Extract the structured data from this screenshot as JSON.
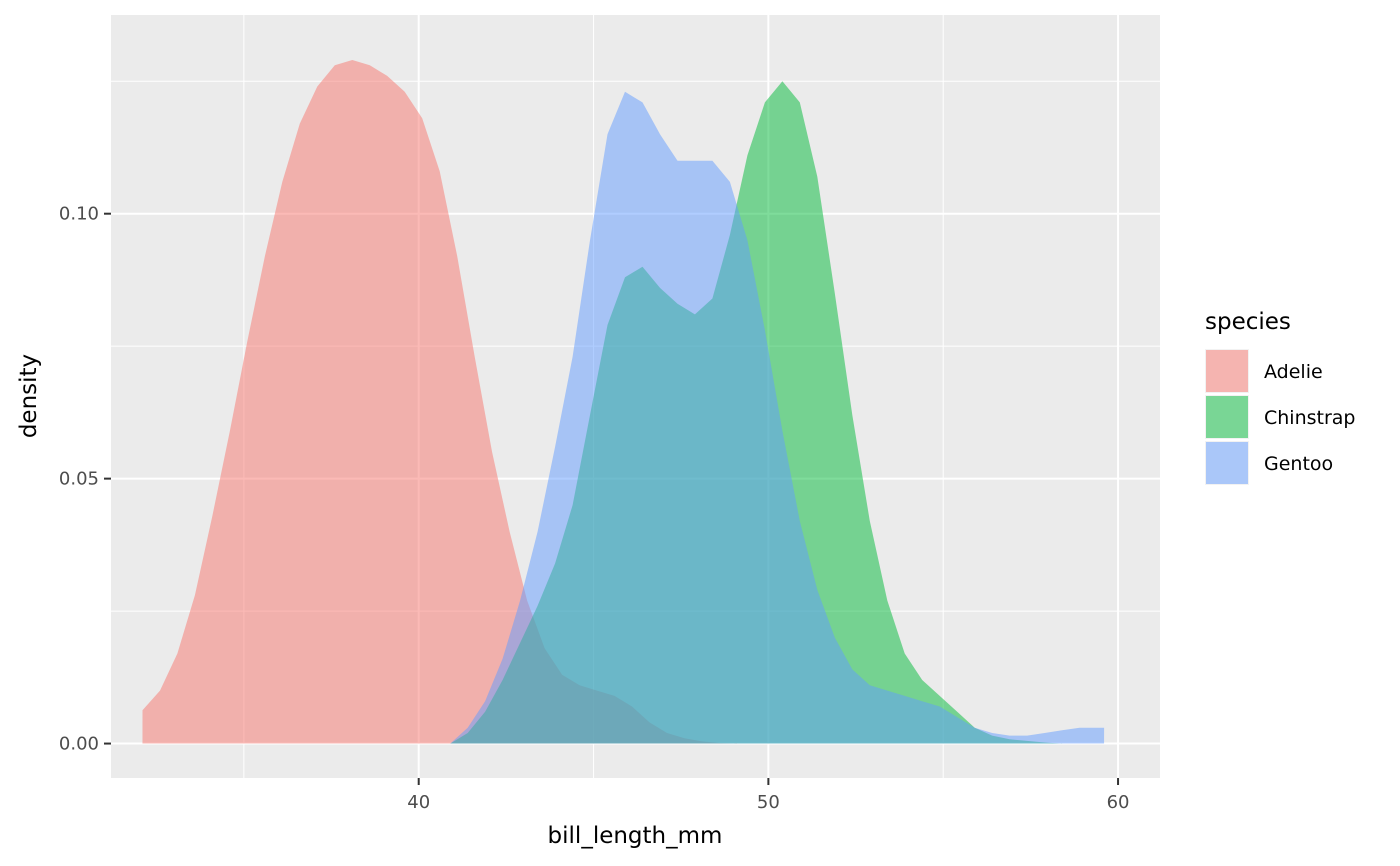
{
  "chart_data": {
    "type": "area",
    "title": "",
    "xlabel": "bill_length_mm",
    "ylabel": "density",
    "xlim": [
      31.2,
      61.2
    ],
    "ylim": [
      -0.0065,
      0.1375
    ],
    "x_ticks": [
      40,
      50,
      60
    ],
    "x_tick_labels": [
      "40",
      "50",
      "60"
    ],
    "y_ticks": [
      0.0,
      0.05,
      0.1
    ],
    "y_tick_labels": [
      "0.00",
      "0.05",
      "0.10"
    ],
    "grid": true,
    "legend": {
      "title": "species",
      "position": "right"
    },
    "fill_alpha": 0.5,
    "series": [
      {
        "name": "Adelie",
        "color": "#F8766D",
        "x": [
          32.1,
          32.6,
          33.1,
          33.6,
          34.1,
          34.6,
          35.1,
          35.6,
          36.1,
          36.6,
          37.1,
          37.6,
          38.1,
          38.6,
          39.1,
          39.6,
          40.1,
          40.6,
          41.1,
          41.6,
          42.1,
          42.6,
          43.1,
          43.6,
          44.1,
          44.6,
          45.1,
          45.6,
          46.1,
          46.6,
          47.1,
          47.6,
          48.1,
          48.6,
          49.1
        ],
        "y": [
          0.0063,
          0.01,
          0.017,
          0.028,
          0.043,
          0.059,
          0.076,
          0.092,
          0.106,
          0.117,
          0.124,
          0.128,
          0.129,
          0.128,
          0.126,
          0.123,
          0.118,
          0.108,
          0.092,
          0.073,
          0.055,
          0.04,
          0.027,
          0.018,
          0.013,
          0.011,
          0.01,
          0.009,
          0.007,
          0.004,
          0.002,
          0.001,
          0.0004,
          0.0001,
          0.0
        ]
      },
      {
        "name": "Chinstrap",
        "color": "#00BA38",
        "x": [
          40.9,
          41.4,
          41.9,
          42.4,
          42.9,
          43.4,
          43.9,
          44.4,
          44.9,
          45.4,
          45.9,
          46.4,
          46.9,
          47.4,
          47.9,
          48.4,
          48.9,
          49.4,
          49.9,
          50.4,
          50.9,
          51.4,
          51.9,
          52.4,
          52.9,
          53.4,
          53.9,
          54.4,
          54.9,
          55.4,
          55.9,
          56.4,
          56.9,
          57.4,
          57.9,
          58.4
        ],
        "y": [
          0.0,
          0.002,
          0.006,
          0.012,
          0.019,
          0.026,
          0.034,
          0.045,
          0.062,
          0.079,
          0.088,
          0.09,
          0.086,
          0.083,
          0.081,
          0.084,
          0.096,
          0.111,
          0.121,
          0.125,
          0.121,
          0.107,
          0.085,
          0.062,
          0.042,
          0.027,
          0.017,
          0.012,
          0.009,
          0.006,
          0.003,
          0.0015,
          0.0008,
          0.0005,
          0.0002,
          0.0
        ]
      },
      {
        "name": "Gentoo",
        "color": "#619CFF",
        "x": [
          40.9,
          41.4,
          41.9,
          42.4,
          42.9,
          43.4,
          43.9,
          44.4,
          44.9,
          45.4,
          45.9,
          46.4,
          46.9,
          47.4,
          47.9,
          48.4,
          48.9,
          49.4,
          49.9,
          50.4,
          50.9,
          51.4,
          51.9,
          52.4,
          52.9,
          53.4,
          53.9,
          54.4,
          54.9,
          55.4,
          55.9,
          56.4,
          56.9,
          57.4,
          57.9,
          58.4,
          58.9,
          59.4,
          59.6
        ],
        "y": [
          0.0,
          0.003,
          0.008,
          0.016,
          0.027,
          0.04,
          0.056,
          0.073,
          0.095,
          0.115,
          0.123,
          0.121,
          0.115,
          0.11,
          0.11,
          0.11,
          0.106,
          0.095,
          0.078,
          0.059,
          0.042,
          0.029,
          0.02,
          0.014,
          0.011,
          0.01,
          0.009,
          0.008,
          0.007,
          0.005,
          0.003,
          0.002,
          0.0015,
          0.0015,
          0.002,
          0.0025,
          0.003,
          0.003,
          0.003
        ]
      }
    ]
  }
}
